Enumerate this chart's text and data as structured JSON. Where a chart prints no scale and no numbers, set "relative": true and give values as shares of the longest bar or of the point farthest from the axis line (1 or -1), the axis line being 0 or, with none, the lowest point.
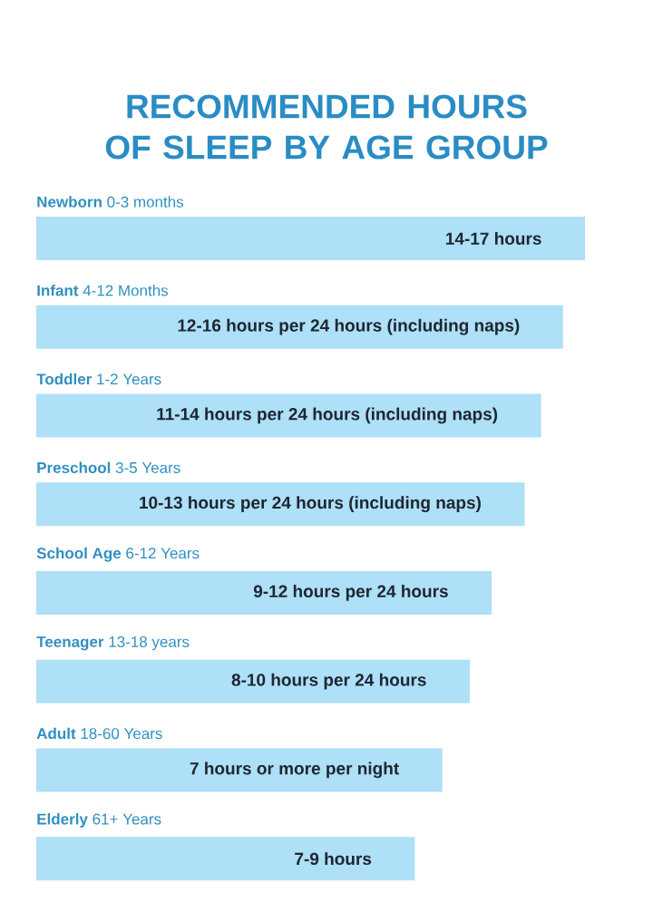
{
  "chart_data": {
    "type": "bar",
    "orientation": "horizontal",
    "relative": true,
    "title": "RECOMMENDED HOURS OF SLEEP BY AGE GROUP",
    "categories": [
      "**Newborn** 0-3 months",
      "**Infant** 4-12 Months",
      "**Toddler** 1-2 Years",
      "**Preschool** 3-5 Years",
      "**School Age** 6-12 Years",
      "**Teenager** 13-18 years",
      "**Adult** 18-60 Years",
      "**Elderly** 61+ Years"
    ],
    "values": [
      1,
      0.96,
      0.92,
      0.89,
      0.83,
      0.79,
      0.74,
      0.69
    ],
    "annotations": [
      "14-17 hours",
      "12-16 hours per 24 hours (including naps)",
      "11-14 hours per 24 hours (including naps)",
      "10-13 hours per 24 hours (including naps)",
      "9-12 hours per 24 hours",
      "8-10 hours per 24 hours",
      "7 hours or more per night",
      "7-9 hours"
    ],
    "color": "#aee0f7"
  }
}
